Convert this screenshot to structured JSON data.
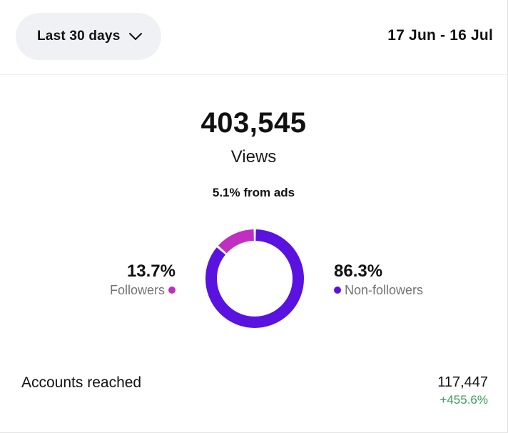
{
  "header": {
    "range_label": "Last 30 days",
    "date_range": "17 Jun - 16 Jul"
  },
  "summary": {
    "total": "403,545",
    "total_label": "Views",
    "ads_share": "5.1% from ads"
  },
  "breakdown": {
    "followers": {
      "value": "13.7%",
      "label": "Followers",
      "percent": 13.7,
      "color": "#c02ec2"
    },
    "non_followers": {
      "value": "86.3%",
      "label": "Non-followers",
      "percent": 86.3,
      "color": "#5a12e0"
    }
  },
  "metrics": {
    "accounts_reached": {
      "label": "Accounts reached",
      "value": "117,447",
      "change": "+455.6%"
    }
  },
  "icons": {
    "dropdown": "chevron-down-icon"
  }
}
